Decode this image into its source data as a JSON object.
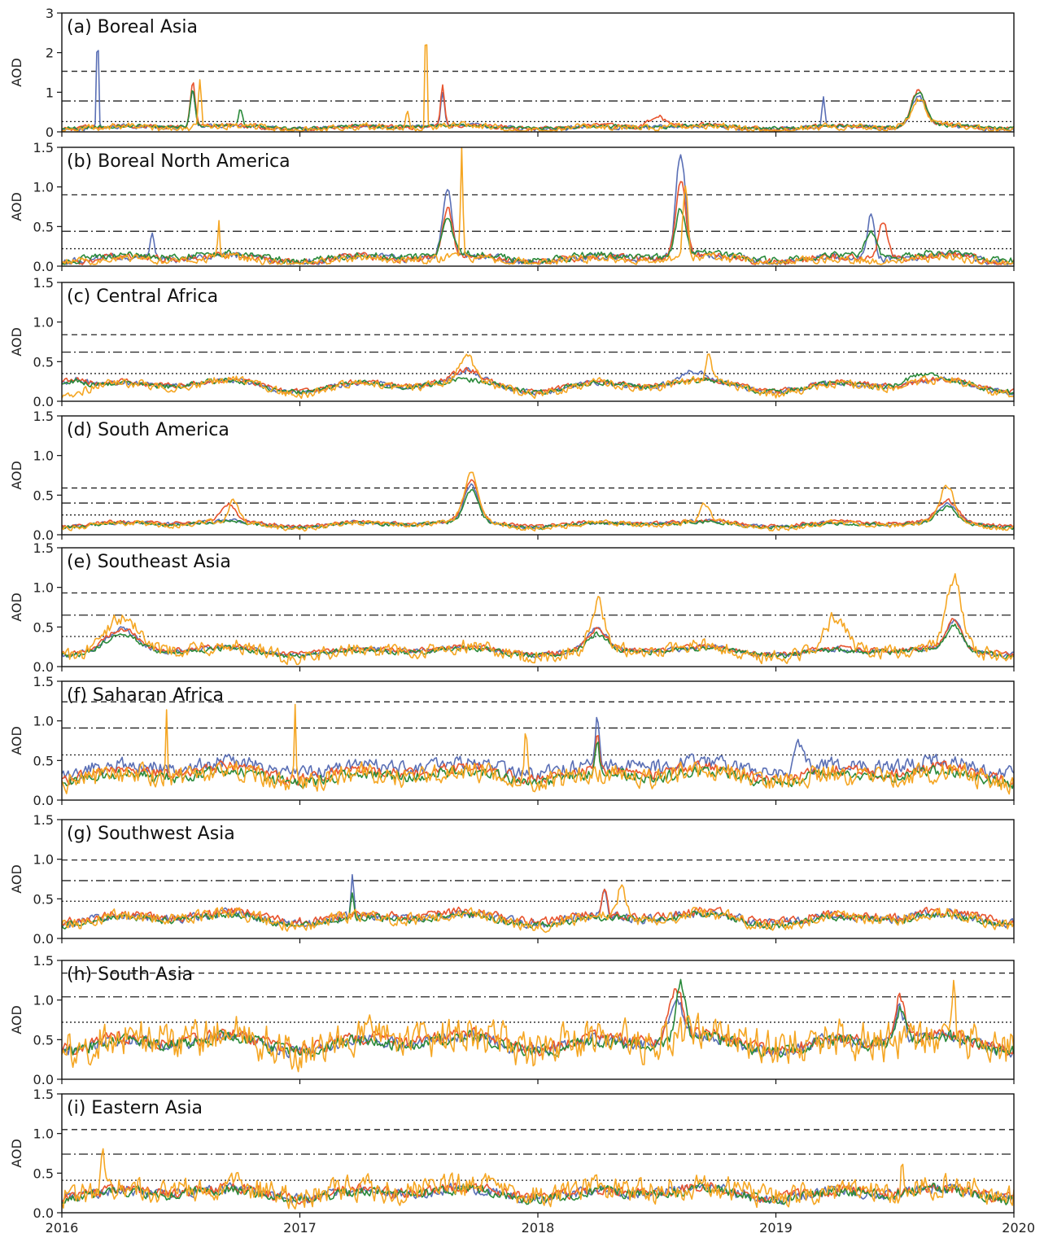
{
  "chart_data": [
    {
      "type": "line",
      "title": "(a) Boreal Asia",
      "ylabel": "AOD",
      "ylim": [
        0,
        3
      ],
      "yticks": [
        "0",
        "1",
        "2",
        "3"
      ],
      "reference_lines": [
        {
          "style": "dashed",
          "y": 1.53
        },
        {
          "style": "dashdot",
          "y": 0.78
        },
        {
          "style": "dotted",
          "y": 0.26
        }
      ],
      "series": [
        {
          "color": "#5a6fb5",
          "base": 0.12,
          "season": 0.05,
          "noise": 0.05,
          "peaks": [
            [
              2016.15,
              2.7,
              0.004
            ],
            [
              2016.55,
              0.9,
              0.01
            ],
            [
              2017.6,
              0.9,
              0.008
            ],
            [
              2019.2,
              0.8,
              0.006
            ],
            [
              2019.6,
              0.75,
              0.03
            ]
          ]
        },
        {
          "color": "#e8542e",
          "base": 0.13,
          "season": 0.05,
          "noise": 0.05,
          "peaks": [
            [
              2016.55,
              1.15,
              0.01
            ],
            [
              2017.6,
              1.0,
              0.008
            ],
            [
              2018.5,
              0.3,
              0.03
            ],
            [
              2019.6,
              0.9,
              0.03
            ]
          ]
        },
        {
          "color": "#2a8a3a",
          "base": 0.13,
          "season": 0.04,
          "noise": 0.04,
          "peaks": [
            [
              2016.55,
              0.95,
              0.01
            ],
            [
              2016.75,
              0.45,
              0.008
            ],
            [
              2019.6,
              0.85,
              0.03
            ]
          ]
        },
        {
          "color": "#f5a623",
          "base": 0.11,
          "season": 0.06,
          "noise": 0.08,
          "peaks": [
            [
              2016.58,
              1.15,
              0.006
            ],
            [
              2017.53,
              3.0,
              0.004
            ],
            [
              2017.45,
              0.5,
              0.006
            ],
            [
              2019.6,
              0.7,
              0.03
            ]
          ]
        }
      ]
    },
    {
      "type": "line",
      "title": "(b) Boreal North America",
      "ylabel": "AOD",
      "ylim": [
        0,
        1.5
      ],
      "yticks": [
        "0.0",
        "0.5",
        "1.0",
        "1.5"
      ],
      "reference_lines": [
        {
          "style": "dashed",
          "y": 0.9
        },
        {
          "style": "dashdot",
          "y": 0.44
        },
        {
          "style": "dotted",
          "y": 0.22
        }
      ],
      "series": [
        {
          "color": "#5a6fb5",
          "base": 0.1,
          "season": 0.05,
          "noise": 0.04,
          "peaks": [
            [
              2016.38,
              0.3,
              0.01
            ],
            [
              2017.62,
              0.85,
              0.02
            ],
            [
              2018.6,
              1.3,
              0.02
            ],
            [
              2019.4,
              0.6,
              0.015
            ]
          ]
        },
        {
          "color": "#e8542e",
          "base": 0.1,
          "season": 0.05,
          "noise": 0.04,
          "peaks": [
            [
              2017.62,
              0.6,
              0.02
            ],
            [
              2018.6,
              1.0,
              0.02
            ],
            [
              2019.45,
              0.45,
              0.02
            ]
          ]
        },
        {
          "color": "#2a8a3a",
          "base": 0.12,
          "season": 0.05,
          "noise": 0.04,
          "peaks": [
            [
              2017.62,
              0.5,
              0.02
            ],
            [
              2018.6,
              0.6,
              0.02
            ],
            [
              2019.4,
              0.35,
              0.02
            ]
          ]
        },
        {
          "color": "#f5a623",
          "base": 0.08,
          "season": 0.04,
          "noise": 0.05,
          "peaks": [
            [
              2016.66,
              0.45,
              0.004
            ],
            [
              2017.68,
              1.35,
              0.005
            ],
            [
              2018.62,
              0.95,
              0.01
            ]
          ]
        }
      ]
    },
    {
      "type": "line",
      "title": "(c) Central Africa",
      "ylabel": "AOD",
      "ylim": [
        0,
        1.5
      ],
      "yticks": [
        "0.0",
        "0.5",
        "1.0",
        "1.5"
      ],
      "reference_lines": [
        {
          "style": "dashed",
          "y": 0.84
        },
        {
          "style": "dashdot",
          "y": 0.62
        },
        {
          "style": "dotted",
          "y": 0.35
        }
      ],
      "series": [
        {
          "color": "#5a6fb5",
          "base": 0.2,
          "season": 0.08,
          "noise": 0.03,
          "peaks": [
            [
              2016.05,
              0.15,
              0.05
            ],
            [
              2017.7,
              0.12,
              0.05
            ],
            [
              2018.65,
              0.12,
              0.05
            ]
          ]
        },
        {
          "color": "#e8542e",
          "base": 0.21,
          "season": 0.08,
          "noise": 0.03,
          "peaks": [
            [
              2016.05,
              0.15,
              0.05
            ],
            [
              2017.7,
              0.12,
              0.05
            ]
          ]
        },
        {
          "color": "#2a8a3a",
          "base": 0.2,
          "season": 0.08,
          "noise": 0.03,
          "peaks": [
            [
              2016.05,
              0.12,
              0.05
            ],
            [
              2019.6,
              0.1,
              0.05
            ]
          ]
        },
        {
          "color": "#f5a623",
          "base": 0.19,
          "season": 0.1,
          "noise": 0.05,
          "peaks": [
            [
              2017.7,
              0.3,
              0.03
            ],
            [
              2018.72,
              0.35,
              0.01
            ]
          ]
        }
      ]
    },
    {
      "type": "line",
      "title": "(d) South America",
      "ylabel": "AOD",
      "ylim": [
        0,
        1.5
      ],
      "yticks": [
        "0.0",
        "0.5",
        "1.0",
        "1.5"
      ],
      "reference_lines": [
        {
          "style": "dashed",
          "y": 0.59
        },
        {
          "style": "dashdot",
          "y": 0.4
        },
        {
          "style": "dotted",
          "y": 0.25
        }
      ],
      "series": [
        {
          "color": "#5a6fb5",
          "base": 0.14,
          "season": 0.04,
          "noise": 0.02,
          "peaks": [
            [
              2017.72,
              0.45,
              0.03
            ],
            [
              2019.72,
              0.22,
              0.04
            ]
          ]
        },
        {
          "color": "#e8542e",
          "base": 0.15,
          "season": 0.04,
          "noise": 0.02,
          "peaks": [
            [
              2016.7,
              0.2,
              0.03
            ],
            [
              2017.72,
              0.5,
              0.03
            ],
            [
              2019.72,
              0.25,
              0.04
            ]
          ]
        },
        {
          "color": "#2a8a3a",
          "base": 0.13,
          "season": 0.04,
          "noise": 0.02,
          "peaks": [
            [
              2017.72,
              0.4,
              0.03
            ],
            [
              2019.72,
              0.18,
              0.04
            ]
          ]
        },
        {
          "color": "#f5a623",
          "base": 0.13,
          "season": 0.05,
          "noise": 0.03,
          "peaks": [
            [
              2016.72,
              0.25,
              0.02
            ],
            [
              2017.72,
              0.6,
              0.03
            ],
            [
              2018.7,
              0.2,
              0.02
            ],
            [
              2019.72,
              0.45,
              0.03
            ]
          ]
        }
      ]
    },
    {
      "type": "line",
      "title": "(e) Southeast Asia",
      "ylabel": "AOD",
      "ylim": [
        0,
        1.5
      ],
      "yticks": [
        "0.0",
        "0.5",
        "1.0",
        "1.5"
      ],
      "reference_lines": [
        {
          "style": "dashed",
          "y": 0.93
        },
        {
          "style": "dashdot",
          "y": 0.65
        },
        {
          "style": "dotted",
          "y": 0.38
        }
      ],
      "series": [
        {
          "color": "#5a6fb5",
          "base": 0.2,
          "season": 0.05,
          "noise": 0.03,
          "peaks": [
            [
              2016.25,
              0.25,
              0.06
            ],
            [
              2018.25,
              0.25,
              0.04
            ],
            [
              2019.75,
              0.35,
              0.03
            ]
          ]
        },
        {
          "color": "#e8542e",
          "base": 0.21,
          "season": 0.05,
          "noise": 0.03,
          "peaks": [
            [
              2016.25,
              0.25,
              0.06
            ],
            [
              2018.25,
              0.25,
              0.04
            ],
            [
              2019.75,
              0.35,
              0.03
            ]
          ]
        },
        {
          "color": "#2a8a3a",
          "base": 0.19,
          "season": 0.05,
          "noise": 0.03,
          "peaks": [
            [
              2016.25,
              0.22,
              0.06
            ],
            [
              2018.25,
              0.2,
              0.04
            ],
            [
              2019.75,
              0.3,
              0.03
            ]
          ]
        },
        {
          "color": "#f5a623",
          "base": 0.2,
          "season": 0.07,
          "noise": 0.08,
          "peaks": [
            [
              2016.25,
              0.4,
              0.06
            ],
            [
              2018.25,
              0.6,
              0.03
            ],
            [
              2019.75,
              0.9,
              0.03
            ],
            [
              2019.25,
              0.4,
              0.04
            ]
          ]
        }
      ]
    },
    {
      "type": "line",
      "title": "(f) Saharan Africa",
      "ylabel": "AOD",
      "ylim": [
        0,
        1.5
      ],
      "yticks": [
        "0.0",
        "0.5",
        "1.0",
        "1.5"
      ],
      "reference_lines": [
        {
          "style": "dashed",
          "y": 1.24
        },
        {
          "style": "dashdot",
          "y": 0.91
        },
        {
          "style": "dotted",
          "y": 0.57
        }
      ],
      "series": [
        {
          "color": "#5a6fb5",
          "base": 0.42,
          "season": 0.08,
          "noise": 0.08,
          "peaks": [
            [
              2018.25,
              0.6,
              0.008
            ],
            [
              2019.1,
              0.3,
              0.02
            ]
          ]
        },
        {
          "color": "#e8542e",
          "base": 0.35,
          "season": 0.08,
          "noise": 0.06,
          "peaks": [
            [
              2018.25,
              0.4,
              0.008
            ]
          ]
        },
        {
          "color": "#2a8a3a",
          "base": 0.3,
          "season": 0.08,
          "noise": 0.06,
          "peaks": [
            [
              2018.25,
              0.45,
              0.008
            ]
          ]
        },
        {
          "color": "#f5a623",
          "base": 0.3,
          "season": 0.08,
          "noise": 0.12,
          "peaks": [
            [
              2016.44,
              0.95,
              0.004
            ],
            [
              2016.98,
              0.95,
              0.004
            ],
            [
              2017.95,
              0.6,
              0.006
            ]
          ]
        }
      ]
    },
    {
      "type": "line",
      "title": "(g) Southwest Asia",
      "ylabel": "AOD",
      "ylim": [
        0,
        1.5
      ],
      "yticks": [
        "0.0",
        "0.5",
        "1.0",
        "1.5"
      ],
      "reference_lines": [
        {
          "style": "dashed",
          "y": 0.99
        },
        {
          "style": "dashdot",
          "y": 0.73
        },
        {
          "style": "dotted",
          "y": 0.47
        }
      ],
      "series": [
        {
          "color": "#5a6fb5",
          "base": 0.26,
          "season": 0.07,
          "noise": 0.05,
          "peaks": [
            [
              2017.22,
              0.5,
              0.006
            ],
            [
              2018.28,
              0.3,
              0.01
            ]
          ]
        },
        {
          "color": "#e8542e",
          "base": 0.28,
          "season": 0.07,
          "noise": 0.05,
          "peaks": [
            [
              2018.28,
              0.3,
              0.01
            ]
          ]
        },
        {
          "color": "#2a8a3a",
          "base": 0.24,
          "season": 0.07,
          "noise": 0.04,
          "peaks": [
            [
              2017.22,
              0.3,
              0.006
            ]
          ]
        },
        {
          "color": "#f5a623",
          "base": 0.25,
          "season": 0.08,
          "noise": 0.07,
          "peaks": [
            [
              2018.35,
              0.35,
              0.02
            ]
          ]
        }
      ]
    },
    {
      "type": "line",
      "title": "(h) South Asia",
      "ylabel": "AOD",
      "ylim": [
        0,
        1.5
      ],
      "yticks": [
        "0.0",
        "0.5",
        "1.0",
        "1.5"
      ],
      "reference_lines": [
        {
          "style": "dashed",
          "y": 1.34
        },
        {
          "style": "dashdot",
          "y": 1.04
        },
        {
          "style": "dotted",
          "y": 0.72
        }
      ],
      "series": [
        {
          "color": "#5a6fb5",
          "base": 0.46,
          "season": 0.1,
          "noise": 0.07,
          "peaks": [
            [
              2018.58,
              0.5,
              0.03
            ],
            [
              2019.52,
              0.45,
              0.02
            ]
          ]
        },
        {
          "color": "#e8542e",
          "base": 0.48,
          "season": 0.1,
          "noise": 0.07,
          "peaks": [
            [
              2018.58,
              0.6,
              0.03
            ],
            [
              2019.52,
              0.55,
              0.02
            ]
          ]
        },
        {
          "color": "#2a8a3a",
          "base": 0.45,
          "season": 0.1,
          "noise": 0.07,
          "peaks": [
            [
              2018.6,
              0.7,
              0.02
            ],
            [
              2019.52,
              0.45,
              0.02
            ]
          ]
        },
        {
          "color": "#f5a623",
          "base": 0.48,
          "season": 0.1,
          "noise": 0.22,
          "peaks": [
            [
              2019.75,
              0.7,
              0.006
            ]
          ]
        }
      ]
    },
    {
      "type": "line",
      "title": "(i) Eastern Asia",
      "ylabel": "AOD",
      "ylim": [
        0,
        1.5
      ],
      "yticks": [
        "0.0",
        "0.5",
        "1.0",
        "1.5"
      ],
      "reference_lines": [
        {
          "style": "dashed",
          "y": 1.05
        },
        {
          "style": "dashdot",
          "y": 0.74
        },
        {
          "style": "dotted",
          "y": 0.41
        }
      ],
      "series": [
        {
          "color": "#5a6fb5",
          "base": 0.25,
          "season": 0.07,
          "noise": 0.06,
          "peaks": []
        },
        {
          "color": "#e8542e",
          "base": 0.26,
          "season": 0.07,
          "noise": 0.06,
          "peaks": []
        },
        {
          "color": "#2a8a3a",
          "base": 0.24,
          "season": 0.07,
          "noise": 0.06,
          "peaks": []
        },
        {
          "color": "#f5a623",
          "base": 0.28,
          "season": 0.08,
          "noise": 0.14,
          "peaks": [
            [
              2016.17,
              0.5,
              0.006
            ],
            [
              2019.53,
              0.55,
              0.004
            ]
          ]
        }
      ]
    }
  ],
  "x_axis": {
    "range": [
      2016,
      2020
    ],
    "ticks": [
      {
        "value": 2016,
        "label": "2016"
      },
      {
        "value": 2017,
        "label": "2017"
      },
      {
        "value": 2018,
        "label": "2018"
      },
      {
        "value": 2019,
        "label": "2019"
      },
      {
        "value": 2020,
        "label": "2020"
      }
    ]
  }
}
